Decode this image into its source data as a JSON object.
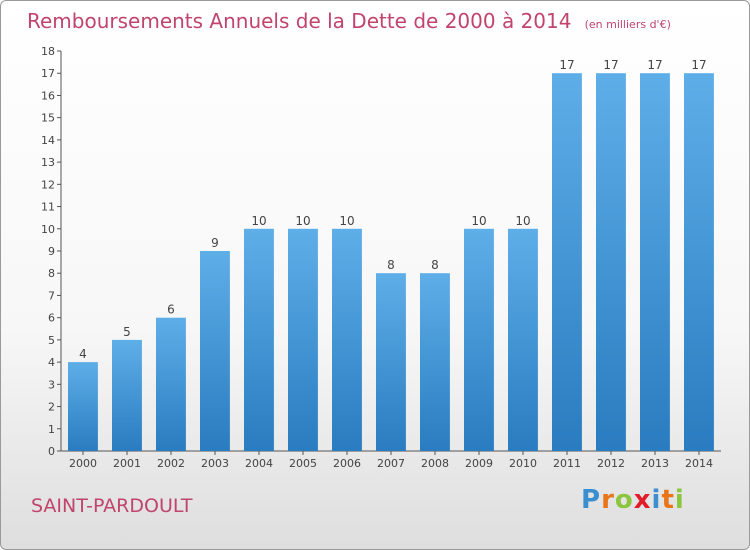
{
  "header": {
    "title": "Remboursements Annuels de la Dette de 2000 à 2014",
    "unit": "(en milliers d'€)"
  },
  "footer": {
    "commune": "SAINT-PARDOULT",
    "logo_letters": [
      "P",
      "r",
      "o",
      "x",
      "i",
      "t",
      "i"
    ],
    "logo_colors": [
      "#3b8fd1",
      "#e8751a",
      "#8cc63f",
      "#e21d2a",
      "#3b8fd1",
      "#e8751a",
      "#8cc63f"
    ]
  },
  "colors": {
    "bar_top": "#5eaee8",
    "bar_bottom": "#2a7cc0",
    "title": "#c0446c"
  },
  "chart_data": {
    "type": "bar",
    "title": "Remboursements Annuels de la Dette de 2000 à 2014",
    "subtitle": "(en milliers d'€)",
    "xlabel": "",
    "ylabel": "",
    "categories": [
      "2000",
      "2001",
      "2002",
      "2003",
      "2004",
      "2005",
      "2006",
      "2007",
      "2008",
      "2009",
      "2010",
      "2011",
      "2012",
      "2013",
      "2014"
    ],
    "values": [
      4,
      5,
      6,
      9,
      10,
      10,
      10,
      8,
      8,
      10,
      10,
      17,
      17,
      17,
      17
    ],
    "ylim": [
      0,
      18
    ],
    "yticks": [
      0,
      1,
      2,
      3,
      4,
      5,
      6,
      7,
      8,
      9,
      10,
      11,
      12,
      13,
      14,
      15,
      16,
      17,
      18
    ],
    "grid": false,
    "legend": "none"
  }
}
